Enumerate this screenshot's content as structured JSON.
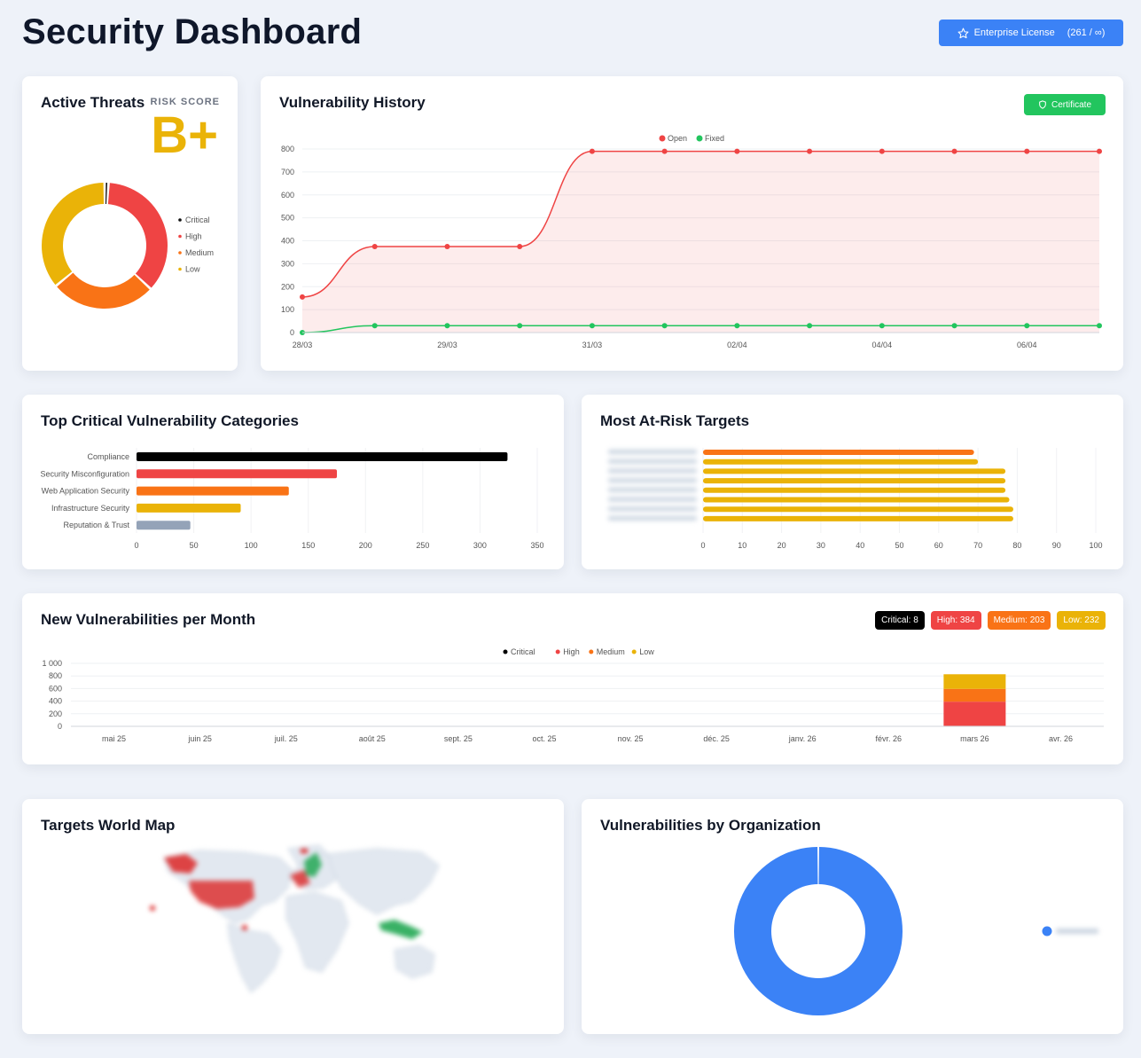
{
  "header": {
    "title": "Security Dashboard",
    "license_label": "Enterprise License",
    "license_count": "(261 / ∞)"
  },
  "active_threats": {
    "title": "Active Threats",
    "risk_label": "RISK SCORE",
    "risk_grade": "B+",
    "chart_data": {
      "type": "pie",
      "labels": [
        "Critical",
        "High",
        "Medium",
        "Low"
      ],
      "values": [
        1,
        36,
        27,
        36
      ],
      "colors": [
        "#111111",
        "#ef4444",
        "#f97316",
        "#eab308"
      ]
    }
  },
  "vulnerability_history": {
    "title": "Vulnerability History",
    "certificate_label": "Certificate",
    "chart_data": {
      "type": "line",
      "x": [
        "28/03",
        "",
        "29/03",
        "",
        "31/03",
        "",
        "02/04",
        "",
        "04/04",
        "",
        "06/04",
        ""
      ],
      "series": [
        {
          "name": "Open",
          "color": "#ef4444",
          "values": [
            155,
            375,
            375,
            375,
            790,
            790,
            790,
            790,
            790,
            790,
            790,
            790
          ]
        },
        {
          "name": "Fixed",
          "color": "#22c55e",
          "values": [
            0,
            30,
            30,
            30,
            30,
            30,
            30,
            30,
            30,
            30,
            30,
            30
          ]
        }
      ],
      "ylim": [
        0,
        800
      ],
      "yticks": [
        "0",
        "100",
        "200",
        "300",
        "400",
        "500",
        "600",
        "700",
        "800"
      ],
      "legend": "top"
    }
  },
  "top_categories": {
    "title": "Top Critical Vulnerability Categories",
    "chart_data": {
      "type": "bar",
      "orientation": "horizontal",
      "categories": [
        "Compliance",
        "Security Misconfiguration",
        "Web Application Security",
        "Infrastructure Security",
        "Reputation & Trust"
      ],
      "values": [
        324,
        175,
        133,
        91,
        47
      ],
      "colors": [
        "#000000",
        "#ef4444",
        "#f97316",
        "#eab308",
        "#94a3b8"
      ],
      "xlim": [
        0,
        350
      ],
      "xticks": [
        "0",
        "50",
        "100",
        "150",
        "200",
        "250",
        "300",
        "350"
      ]
    }
  },
  "at_risk_targets": {
    "title": "Most At-Risk Targets",
    "chart_data": {
      "type": "bar",
      "orientation": "horizontal",
      "series": [
        {
          "color": "#f97316",
          "values": [
            69,
            0,
            0,
            0,
            0,
            0,
            0,
            0
          ]
        },
        {
          "color": "#eab308",
          "values": [
            0,
            70,
            77,
            77,
            77,
            78,
            79,
            79
          ]
        }
      ],
      "xlim": [
        0,
        100
      ],
      "xticks": [
        "0",
        "10",
        "20",
        "30",
        "40",
        "50",
        "60",
        "70",
        "80",
        "90",
        "100"
      ]
    }
  },
  "monthly": {
    "title": "New Vulnerabilities per Month",
    "badges": [
      {
        "label": "Critical: 8",
        "color": "#000000"
      },
      {
        "label": "High: 384",
        "color": "#ef4444"
      },
      {
        "label": "Medium: 203",
        "color": "#f97316"
      },
      {
        "label": "Low: 232",
        "color": "#eab308"
      }
    ],
    "chart_data": {
      "type": "bar",
      "stacked": true,
      "categories": [
        "mai 25",
        "juin 25",
        "juil. 25",
        "août 25",
        "sept. 25",
        "oct. 25",
        "nov. 25",
        "déc. 25",
        "janv. 26",
        "févr. 26",
        "mars 26",
        "avr. 26"
      ],
      "series": [
        {
          "name": "Critical",
          "color": "#000000",
          "values": [
            0,
            0,
            0,
            0,
            0,
            0,
            0,
            0,
            0,
            0,
            8,
            0
          ]
        },
        {
          "name": "High",
          "color": "#ef4444",
          "values": [
            0,
            0,
            0,
            0,
            0,
            0,
            0,
            0,
            0,
            0,
            384,
            0
          ]
        },
        {
          "name": "Medium",
          "color": "#f97316",
          "values": [
            0,
            0,
            0,
            0,
            0,
            0,
            0,
            0,
            0,
            0,
            203,
            0
          ]
        },
        {
          "name": "Low",
          "color": "#eab308",
          "values": [
            0,
            0,
            0,
            0,
            0,
            0,
            0,
            0,
            0,
            0,
            232,
            0
          ]
        }
      ],
      "ylim": [
        0,
        1000
      ],
      "yticks": [
        "0",
        "200",
        "400",
        "600",
        "800",
        "1 000"
      ],
      "legend": "top"
    }
  },
  "world_map": {
    "title": "Targets World Map"
  },
  "by_organization": {
    "title": "Vulnerabilities by Organization",
    "chart_data": {
      "type": "pie",
      "values": [
        100
      ],
      "colors": [
        "#3b82f6"
      ]
    }
  }
}
